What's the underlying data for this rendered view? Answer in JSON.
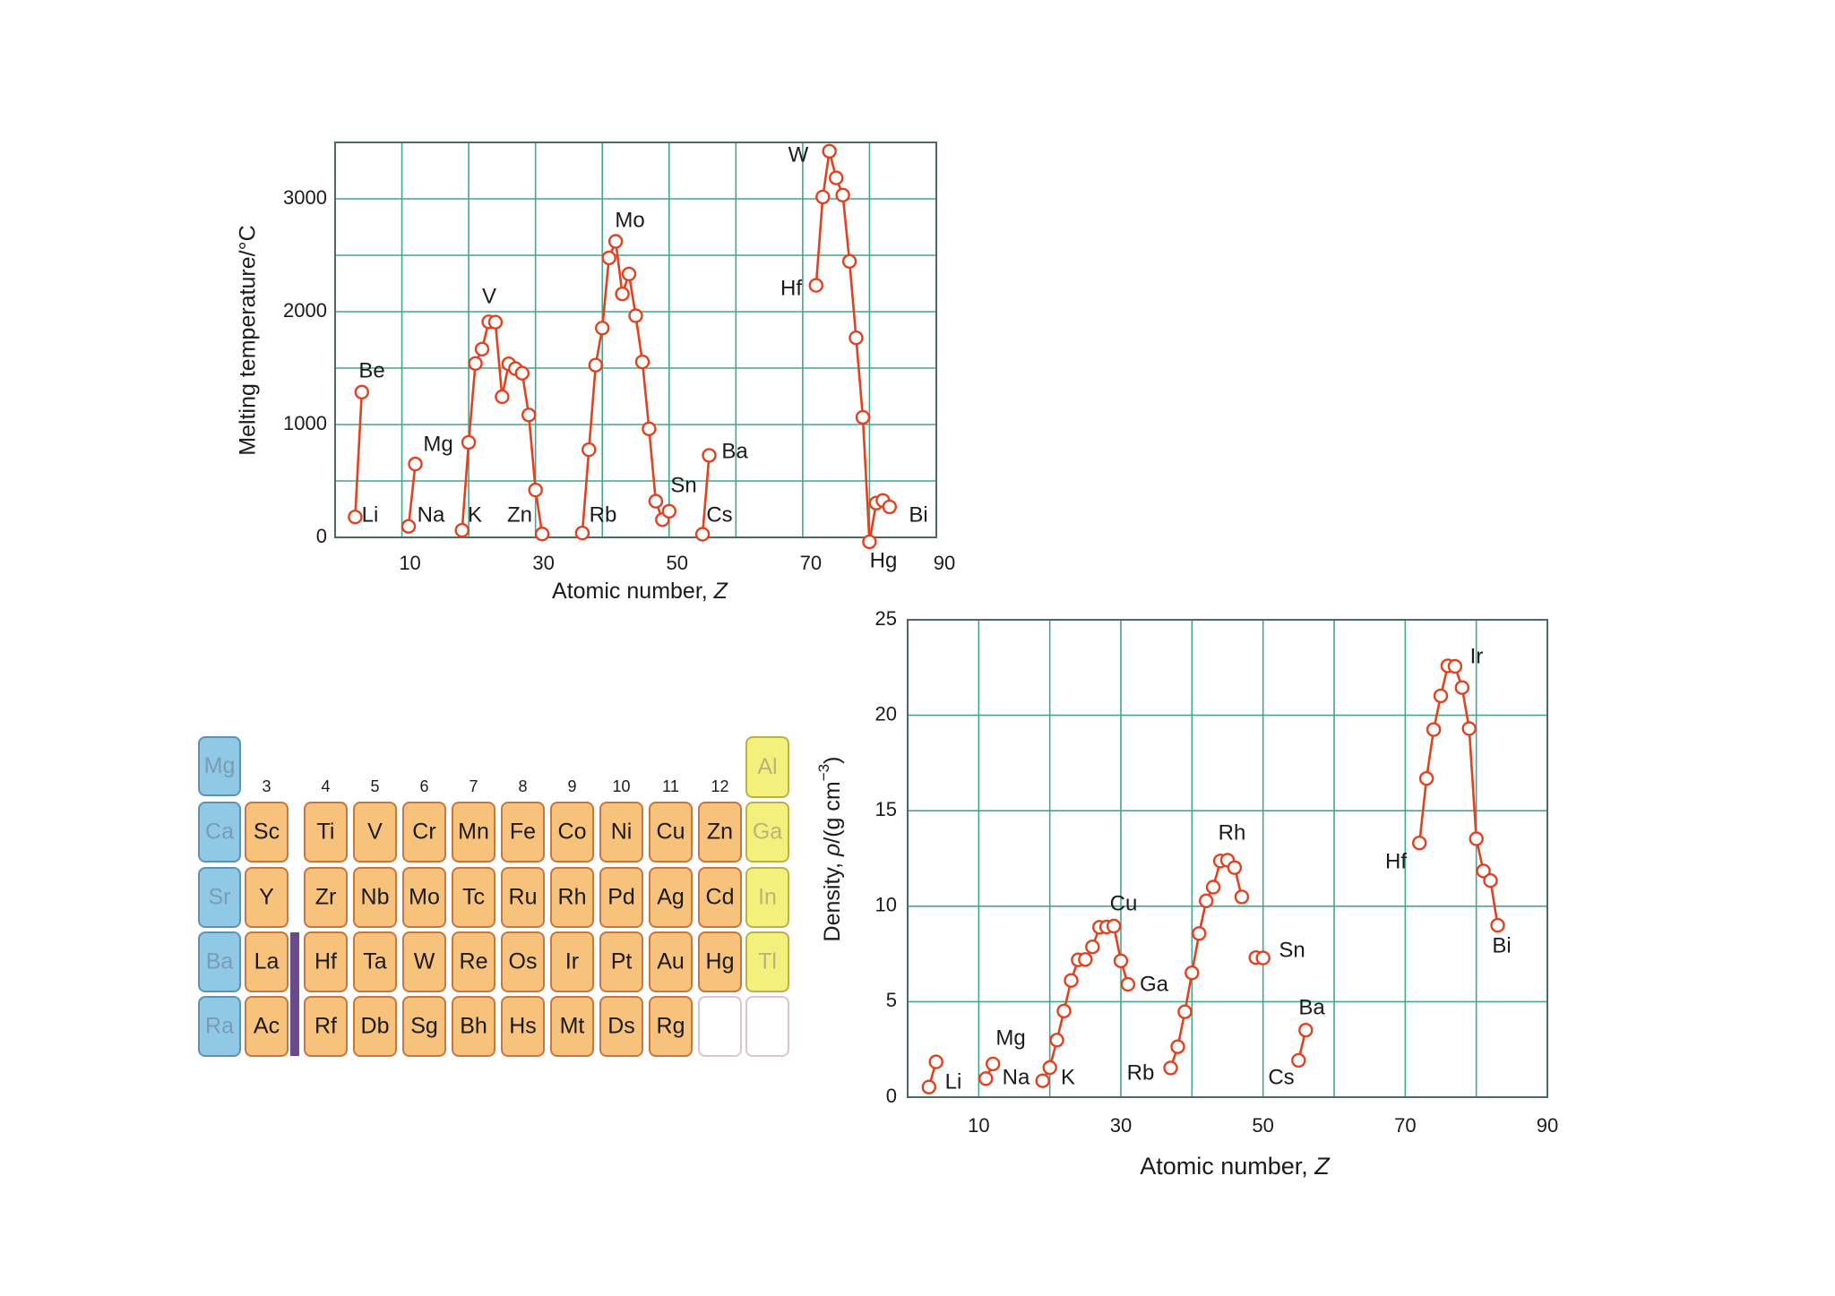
{
  "chart_data": [
    {
      "type": "line",
      "xlabel": {
        "text": "Atomic number, ",
        "var": "Z"
      },
      "ylabel": "Melting temperature/°C",
      "xlim": [
        0,
        90
      ],
      "ylim": [
        0,
        3500
      ],
      "x_ticks": [
        10,
        30,
        50,
        70,
        90
      ],
      "y_ticks": [
        0,
        1000,
        2000,
        3000
      ],
      "grid": true,
      "grid_step": {
        "x": 10,
        "y": 500
      },
      "segments": [
        {
          "x": [
            3,
            4
          ],
          "y": [
            181,
            1287
          ]
        },
        {
          "x": [
            11,
            12
          ],
          "y": [
            98,
            650
          ]
        },
        {
          "x": [
            19,
            20,
            21,
            22,
            23,
            24,
            25,
            26,
            27,
            28,
            29,
            30,
            31
          ],
          "y": [
            63,
            842,
            1541,
            1668,
            1910,
            1907,
            1246,
            1538,
            1495,
            1455,
            1085,
            420,
            30
          ]
        },
        {
          "x": [
            37,
            38,
            39,
            40,
            41,
            42,
            43,
            44,
            45,
            46,
            47,
            48,
            49,
            50
          ],
          "y": [
            39,
            777,
            1526,
            1855,
            2477,
            2623,
            2157,
            2334,
            1964,
            1555,
            962,
            321,
            157,
            232
          ]
        },
        {
          "x": [
            55,
            56
          ],
          "y": [
            28,
            727
          ]
        },
        {
          "x": [
            72,
            73,
            74,
            75,
            76,
            77,
            78,
            79,
            80,
            81,
            82,
            83
          ],
          "y": [
            2233,
            3017,
            3422,
            3186,
            3033,
            2446,
            1768,
            1064,
            -39,
            304,
            327,
            271
          ]
        }
      ],
      "point_labels": [
        {
          "text": "Be",
          "x": 4
        },
        {
          "text": "Li",
          "x": 3
        },
        {
          "text": "Mg",
          "x": 12
        },
        {
          "text": "Na",
          "x": 11
        },
        {
          "text": "K",
          "x": 19
        },
        {
          "text": "V",
          "x": 23
        },
        {
          "text": "Zn",
          "x": 30
        },
        {
          "text": "Mo",
          "x": 42
        },
        {
          "text": "Rb",
          "x": 37
        },
        {
          "text": "Sn",
          "x": 50
        },
        {
          "text": "Cs",
          "x": 55
        },
        {
          "text": "Ba",
          "x": 56
        },
        {
          "text": "W",
          "x": 74
        },
        {
          "text": "Hf",
          "x": 72
        },
        {
          "text": "Hg",
          "x": 80
        },
        {
          "text": "Bi",
          "x": 83
        }
      ]
    },
    {
      "type": "line",
      "xlabel": {
        "text": "Atomic number, ",
        "var": "Z"
      },
      "ylabel": {
        "pre": "Density, ",
        "var": "ρ",
        "unit": "/(g cm",
        "sup": "−3",
        "post": ")"
      },
      "xlim": [
        0,
        90
      ],
      "ylim": [
        0,
        25
      ],
      "x_ticks": [
        10,
        30,
        50,
        70,
        90
      ],
      "y_ticks": [
        0,
        5,
        10,
        15,
        20,
        25
      ],
      "grid": true,
      "grid_step": {
        "x": 10,
        "y": 5
      },
      "segments": [
        {
          "x": [
            3,
            4
          ],
          "y": [
            0.53,
            1.85
          ]
        },
        {
          "x": [
            11,
            12
          ],
          "y": [
            0.97,
            1.74
          ]
        },
        {
          "x": [
            19,
            20,
            21,
            22,
            23,
            24,
            25,
            26,
            27,
            28,
            29,
            30,
            31
          ],
          "y": [
            0.86,
            1.55,
            2.99,
            4.51,
            6.11,
            7.19,
            7.21,
            7.87,
            8.9,
            8.91,
            8.96,
            7.14,
            5.91
          ]
        },
        {
          "x": [
            37,
            38,
            39,
            40,
            41,
            42,
            43,
            44,
            45,
            46,
            47
          ],
          "y": [
            1.53,
            2.64,
            4.47,
            6.51,
            8.57,
            10.28,
            11.0,
            12.37,
            12.41,
            12.02,
            10.49
          ]
        },
        {
          "x": [
            49,
            50
          ],
          "y": [
            7.31,
            7.29
          ]
        },
        {
          "x": [
            55,
            56
          ],
          "y": [
            1.93,
            3.51
          ]
        },
        {
          "x": [
            72,
            73,
            74,
            75,
            76,
            77,
            78,
            79,
            80,
            81,
            82,
            83
          ],
          "y": [
            13.31,
            16.69,
            19.25,
            21.02,
            22.59,
            22.56,
            21.45,
            19.3,
            13.53,
            11.85,
            11.34,
            9.0
          ]
        }
      ],
      "point_labels": [
        {
          "text": "Li",
          "x": 3
        },
        {
          "text": "Na",
          "x": 11
        },
        {
          "text": "Mg",
          "x": 12
        },
        {
          "text": "K",
          "x": 19
        },
        {
          "text": "Rb",
          "x": 37
        },
        {
          "text": "Cu",
          "x": 29
        },
        {
          "text": "Ga",
          "x": 31
        },
        {
          "text": "Rh",
          "x": 45
        },
        {
          "text": "Sn",
          "x": 50
        },
        {
          "text": "Ba",
          "x": 56
        },
        {
          "text": "Cs",
          "x": 55
        },
        {
          "text": "Hf",
          "x": 72
        },
        {
          "text": "Ir",
          "x": 77
        },
        {
          "text": "Bi",
          "x": 83
        }
      ]
    }
  ],
  "periodic_table": {
    "group_numbers": [
      "3",
      "4",
      "5",
      "6",
      "7",
      "8",
      "9",
      "10",
      "11",
      "12"
    ],
    "top_row": {
      "s_block": "Mg",
      "p_block": "Al"
    },
    "rows": [
      {
        "s_block": "Ca",
        "d_block": [
          "Sc",
          "Ti",
          "V",
          "Cr",
          "Mn",
          "Fe",
          "Co",
          "Ni",
          "Cu",
          "Zn"
        ],
        "p_block": "Ga"
      },
      {
        "s_block": "Sr",
        "d_block": [
          "Y",
          "Zr",
          "Nb",
          "Mo",
          "Tc",
          "Ru",
          "Rh",
          "Pd",
          "Ag",
          "Cd"
        ],
        "p_block": "In"
      },
      {
        "s_block": "Ba",
        "d_block": [
          "La",
          "Hf",
          "Ta",
          "W",
          "Re",
          "Os",
          "Ir",
          "Pt",
          "Au",
          "Hg"
        ],
        "p_block": "Tl"
      },
      {
        "s_block": "Ra",
        "d_block": [
          "Ac",
          "Rf",
          "Db",
          "Sg",
          "Bh",
          "Hs",
          "Mt",
          "Ds",
          "Rg",
          ""
        ],
        "p_block": ""
      }
    ]
  },
  "colors": {
    "line": "#e2401f",
    "marker_fill": "#ffffff",
    "grid": "#44a78c",
    "frame": "#4d6a62",
    "text": "#1b1b1b",
    "s_block": "#8fc9e6",
    "s_block_border": "#5c93b4",
    "s_block_text": "#7b9cb3",
    "d_block": "#f6c27c",
    "d_block_border": "#c7763d",
    "d_block_text": "#1b1b1b",
    "p_block": "#f4f07c",
    "p_block_border": "#b8b24c",
    "p_block_text": "#b9b57a",
    "empty_border": "#dcc4cf",
    "f_bar": "#6b4a8a"
  }
}
